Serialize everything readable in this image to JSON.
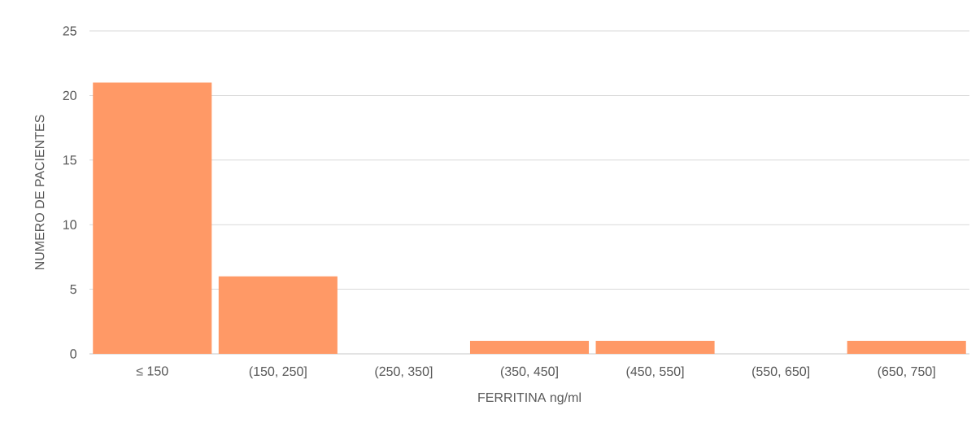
{
  "chart_data": {
    "type": "bar",
    "xlabel": "FERRITINA ng/ml",
    "ylabel": "NUMERO DE PACIENTES",
    "categories": [
      "≤ 150",
      "(150, 250]",
      "(250, 350]",
      "(350, 450]",
      "(450, 550]",
      "(550, 650]",
      "(650, 750]"
    ],
    "values": [
      21,
      6,
      0,
      1,
      1,
      0,
      1
    ],
    "color": "#ff9966",
    "ylim": [
      0,
      25
    ],
    "yticks": [
      0,
      5,
      10,
      15,
      20,
      25
    ],
    "grid": "y"
  }
}
